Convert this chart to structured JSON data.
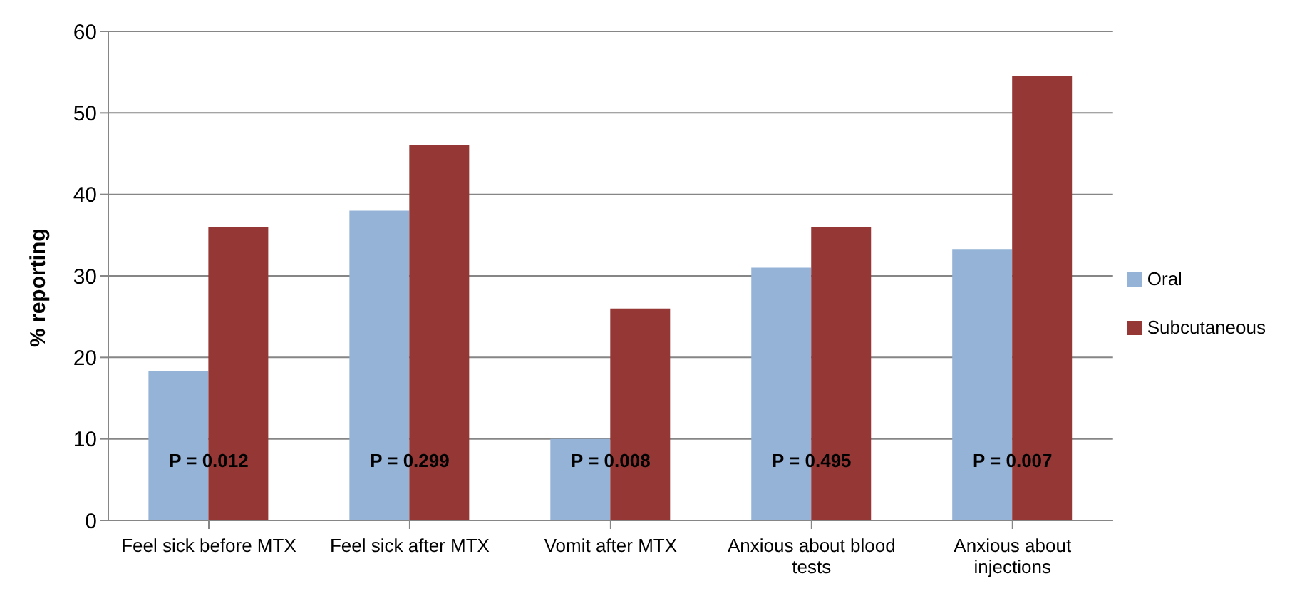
{
  "chart_data": {
    "type": "bar",
    "ylabel": "% reporting",
    "categories": [
      "Feel sick before MTX",
      "Feel sick after MTX",
      "Vomit after MTX",
      "Anxious about blood tests",
      "Anxious about injections"
    ],
    "series": [
      {
        "name": "Oral",
        "color": "#95b3d7",
        "values": [
          18.3,
          38,
          10,
          31,
          33.3
        ]
      },
      {
        "name": "Subcutaneous",
        "color": "#953735",
        "values": [
          36,
          46,
          26,
          36,
          54.5
        ]
      }
    ],
    "ylim": [
      0,
      60
    ],
    "yticks": [
      0,
      10,
      20,
      30,
      40,
      50,
      60
    ],
    "grid": "y",
    "legend": "right",
    "annotations": [
      {
        "text": "P = 0.012",
        "x": "Feel sick before MTX",
        "y": 7.4
      },
      {
        "text": "P = 0.299",
        "x": "Feel sick after MTX",
        "y": 7.4
      },
      {
        "text": "P = 0.008",
        "x": "Vomit after MTX",
        "y": 7.4
      },
      {
        "text": "P = 0.495",
        "x": "Anxious about blood tests",
        "y": 7.4
      },
      {
        "text": "P = 0.007",
        "x": "Anxious about injections",
        "y": 7.4
      }
    ]
  }
}
